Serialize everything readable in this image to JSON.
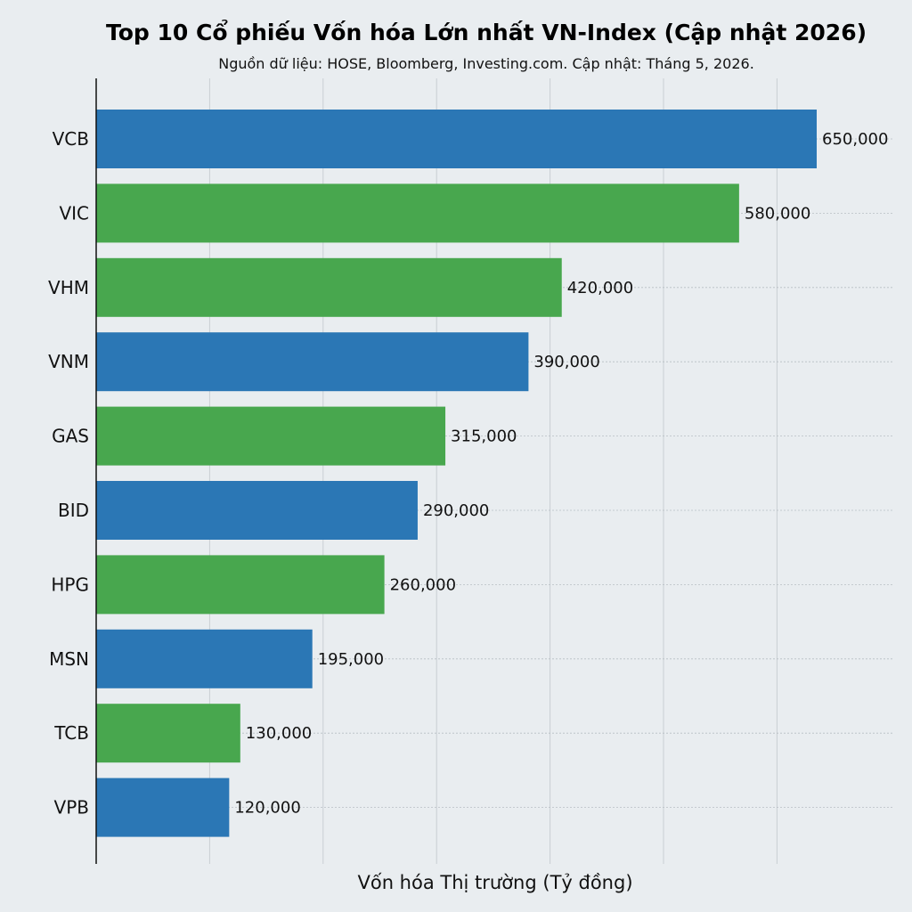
{
  "chart_data": {
    "type": "bar",
    "orientation": "horizontal",
    "title": "Top 10 Cổ phiếu Vốn hóa Lớn nhất VN-Index (Cập nhật 2026)",
    "subtitle": "Nguồn dữ liệu: HOSE, Bloomberg, Investing.com. Cập nhật: Tháng 5, 2026.",
    "xlabel": "Vốn hóa Thị trường (Tỷ đồng)",
    "ylabel": "",
    "categories": [
      "VCB",
      "VIC",
      "VHM",
      "VNM",
      "GAS",
      "BID",
      "HPG",
      "MSN",
      "TCB",
      "VPB"
    ],
    "values": [
      650000,
      580000,
      420000,
      390000,
      315000,
      290000,
      260000,
      195000,
      130000,
      120000
    ],
    "value_labels": [
      "650,000",
      "580,000",
      "420,000",
      "390,000",
      "315,000",
      "290,000",
      "260,000",
      "195,000",
      "130,000",
      "120,000"
    ],
    "bar_colors": [
      "#2b77b5",
      "#48a74e",
      "#48a74e",
      "#2b77b5",
      "#48a74e",
      "#2b77b5",
      "#48a74e",
      "#2b77b5",
      "#48a74e",
      "#2b77b5"
    ],
    "xlim": [
      0,
      720000
    ],
    "x_tick_labels_shown": false,
    "grid": true,
    "legend": "none"
  }
}
